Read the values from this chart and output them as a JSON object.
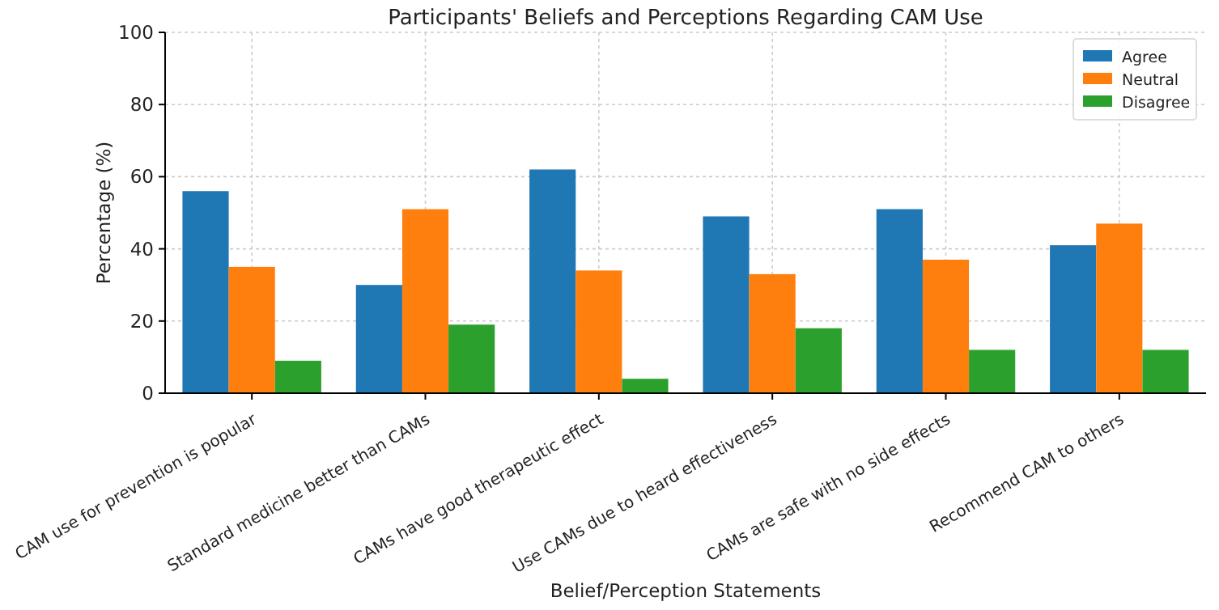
{
  "chart_data": {
    "type": "bar",
    "title": "Participants' Beliefs and Perceptions Regarding CAM Use",
    "xlabel": "Belief/Perception Statements",
    "ylabel": "Percentage (%)",
    "categories": [
      "CAM use for prevention is popular",
      "Standard medicine better than CAMs",
      "CAMs have good therapeutic effect",
      "Use CAMs due to heard effectiveness",
      "CAMs are safe with no side effects",
      "Recommend CAM to others"
    ],
    "series": [
      {
        "name": "Agree",
        "color": "#1f77b4",
        "values": [
          56,
          30,
          62,
          49,
          51,
          41
        ]
      },
      {
        "name": "Neutral",
        "color": "#ff7f0e",
        "values": [
          35,
          51,
          34,
          33,
          37,
          47
        ]
      },
      {
        "name": "Disagree",
        "color": "#2ca02c",
        "values": [
          9,
          19,
          4,
          18,
          12,
          12
        ]
      }
    ],
    "ylim": [
      0,
      100
    ],
    "yticks": [
      0,
      20,
      40,
      60,
      80,
      100
    ],
    "grid": true,
    "legend": "top right"
  }
}
